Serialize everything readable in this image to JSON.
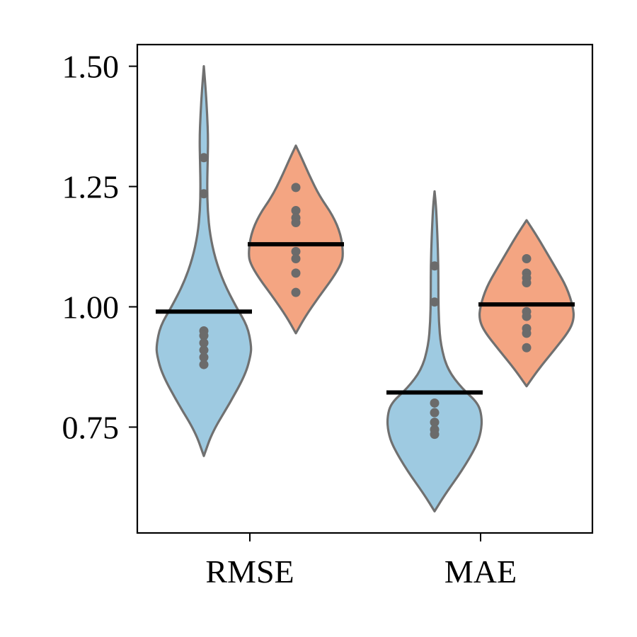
{
  "chart_data": {
    "type": "violin",
    "title": "",
    "xlabel": "",
    "ylabel": "",
    "categories": [
      "RMSE",
      "MAE"
    ],
    "ylim": [
      0.53,
      1.545
    ],
    "yticks": [
      {
        "value": 0.75,
        "label": "0.75"
      },
      {
        "value": 1.0,
        "label": "1.00"
      },
      {
        "value": 1.25,
        "label": "1.25"
      },
      {
        "value": 1.5,
        "label": "1.50"
      }
    ],
    "grid": false,
    "legend": "none",
    "series": [
      {
        "color": "#9ecae1",
        "groups": [
          {
            "category": "RMSE",
            "mean": 0.99,
            "points": [
              1.31,
              1.235,
              0.95,
              0.94,
              0.925,
              0.91,
              0.895,
              0.88
            ],
            "kde": [
              [
                0.69,
                0.0
              ],
              [
                0.74,
                0.18
              ],
              [
                0.8,
                0.55
              ],
              [
                0.86,
                0.88
              ],
              [
                0.9,
                0.99
              ],
              [
                0.92,
                1.0
              ],
              [
                0.96,
                0.92
              ],
              [
                1.0,
                0.68
              ],
              [
                1.05,
                0.42
              ],
              [
                1.1,
                0.24
              ],
              [
                1.15,
                0.13
              ],
              [
                1.2,
                0.08
              ],
              [
                1.25,
                0.07
              ],
              [
                1.3,
                0.08
              ],
              [
                1.35,
                0.09
              ],
              [
                1.4,
                0.07
              ],
              [
                1.45,
                0.04
              ],
              [
                1.5,
                0.0
              ]
            ]
          },
          {
            "category": "MAE",
            "mean": 0.822,
            "points": [
              1.085,
              1.01,
              0.8,
              0.78,
              0.76,
              0.745,
              0.735
            ],
            "kde": [
              [
                0.575,
                0.0
              ],
              [
                0.61,
                0.22
              ],
              [
                0.66,
                0.58
              ],
              [
                0.71,
                0.88
              ],
              [
                0.74,
                0.98
              ],
              [
                0.77,
                1.0
              ],
              [
                0.8,
                0.92
              ],
              [
                0.83,
                0.58
              ],
              [
                0.87,
                0.27
              ],
              [
                0.92,
                0.13
              ],
              [
                0.97,
                0.09
              ],
              [
                1.02,
                0.08
              ],
              [
                1.07,
                0.08
              ],
              [
                1.12,
                0.07
              ],
              [
                1.17,
                0.05
              ],
              [
                1.21,
                0.03
              ],
              [
                1.24,
                0.0
              ]
            ]
          }
        ]
      },
      {
        "color": "#f4a582",
        "groups": [
          {
            "category": "RMSE",
            "mean": 1.13,
            "points": [
              1.248,
              1.2,
              1.185,
              1.175,
              1.115,
              1.1,
              1.07,
              1.03
            ],
            "kde": [
              [
                0.945,
                0.0
              ],
              [
                0.98,
                0.2
              ],
              [
                1.02,
                0.48
              ],
              [
                1.06,
                0.78
              ],
              [
                1.09,
                0.96
              ],
              [
                1.11,
                1.0
              ],
              [
                1.15,
                0.95
              ],
              [
                1.19,
                0.78
              ],
              [
                1.23,
                0.5
              ],
              [
                1.27,
                0.3
              ],
              [
                1.31,
                0.12
              ],
              [
                1.335,
                0.0
              ]
            ]
          },
          {
            "category": "MAE",
            "mean": 1.005,
            "points": [
              1.1,
              1.07,
              1.06,
              1.05,
              0.99,
              0.98,
              0.955,
              0.945,
              0.915
            ],
            "kde": [
              [
                0.835,
                0.0
              ],
              [
                0.87,
                0.25
              ],
              [
                0.91,
                0.58
              ],
              [
                0.95,
                0.9
              ],
              [
                0.975,
                1.0
              ],
              [
                1.0,
                0.98
              ],
              [
                1.04,
                0.85
              ],
              [
                1.08,
                0.62
              ],
              [
                1.12,
                0.38
              ],
              [
                1.15,
                0.2
              ],
              [
                1.18,
                0.0
              ]
            ]
          }
        ]
      }
    ]
  },
  "style": {
    "violin_edge_color": "#707070",
    "point_color": "#6b6b6b",
    "mean_line_color": "#000000"
  }
}
